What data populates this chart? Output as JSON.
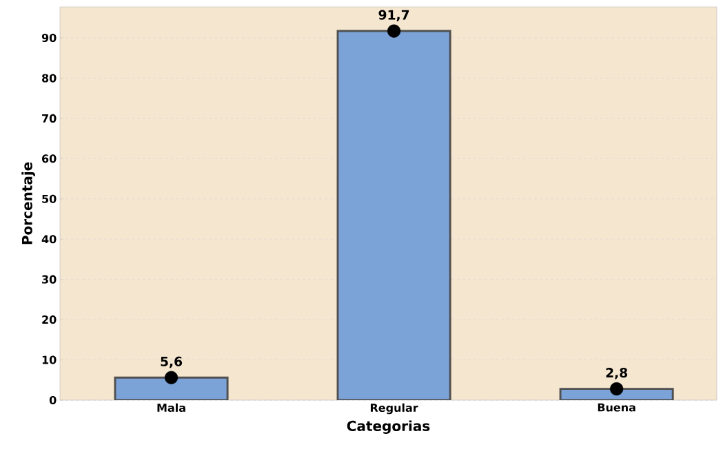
{
  "chart_data": {
    "type": "bar",
    "xlabel": "Categorias",
    "ylabel": "Porcentaje",
    "categories": [
      "Mala",
      "Regular",
      "Buena"
    ],
    "series": [
      {
        "color": "#7ba3d8",
        "values": [
          5.6,
          91.7,
          2.8
        ],
        "value_labels": [
          "5,6",
          "91,7",
          "2,8"
        ]
      },
      {
        "type": "scatter",
        "color": "#000000",
        "marker": "circle",
        "x": [
          "Mala",
          "Regular",
          "Buena"
        ],
        "values": [
          5.6,
          91.7,
          2.8
        ]
      }
    ],
    "ylim": [
      0,
      97.7
    ],
    "yticks": [
      0,
      10,
      20,
      30,
      40,
      50,
      60,
      70,
      80,
      90
    ],
    "grid": "y"
  }
}
